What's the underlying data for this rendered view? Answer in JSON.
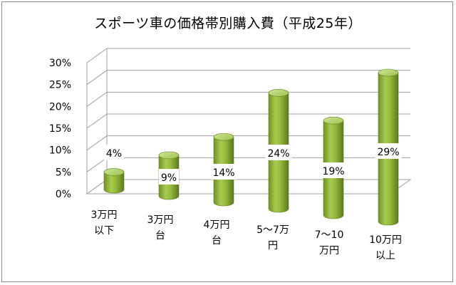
{
  "chart_data": {
    "type": "bar",
    "title": "スポーツ車の価格帯別購入費（平成25年）",
    "categories": [
      [
        "3万円",
        "以下"
      ],
      [
        "3万円",
        "台"
      ],
      [
        "4万円",
        "台"
      ],
      [
        "5～7万",
        "円"
      ],
      [
        "7～10",
        "万円"
      ],
      [
        "10万円",
        "以上"
      ]
    ],
    "values": [
      4,
      9,
      14,
      24,
      19,
      29
    ],
    "data_labels": [
      "4%",
      "9%",
      "14%",
      "24%",
      "19%",
      "29%"
    ],
    "y_ticks": [
      "0%",
      "5%",
      "10%",
      "15%",
      "20%",
      "25%",
      "30%"
    ],
    "ylim": [
      0,
      30
    ],
    "grid": true,
    "style": "3d-cylinder",
    "colors": {
      "bar": "#93b83a",
      "bar_dark": "#5f8021",
      "bar_light": "#c5df86",
      "grid": "#a0a0a0"
    }
  }
}
